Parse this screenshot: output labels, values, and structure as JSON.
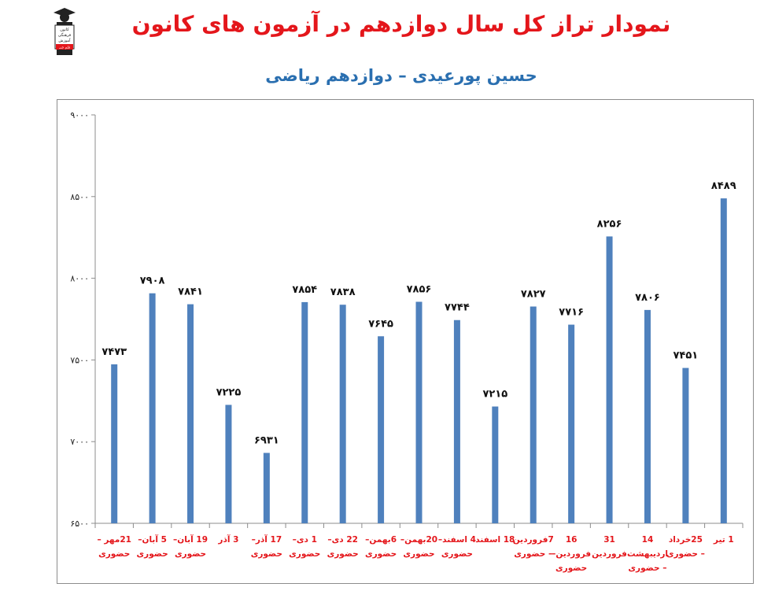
{
  "header": {
    "title": "نمودار تراز کل سال دوازدهم در آزمون های کانون",
    "subtitle": "حسین پورعیدی – دوازدهم ریاضی",
    "logo_text": [
      "کانون",
      "فرهنگی",
      "آموزش",
      "قلم چی"
    ]
  },
  "colors": {
    "title": "#e4161b",
    "subtitle": "#2a6fb0",
    "bar": "#4f81bd",
    "category_label": "#e4161b"
  },
  "chart_data": {
    "type": "bar",
    "categories": [
      [
        "21مهر –",
        "حضوری"
      ],
      [
        "5 آبان–",
        "حضوری"
      ],
      [
        "19 آبان–",
        "حضوری"
      ],
      [
        "3 آذر"
      ],
      [
        "17 آذر–",
        "حضوری"
      ],
      [
        "1 دی–",
        "حضوری"
      ],
      [
        "22 دی–",
        "حضوری"
      ],
      [
        "6بهمن–",
        "حضوری"
      ],
      [
        "20بهمن–",
        "حضوری"
      ],
      [
        "4 اسفند–",
        "حضوری"
      ],
      [
        "18 اسفند"
      ],
      [
        "7فروردین",
        "– حضوری"
      ],
      [
        "16",
        "فروردین–",
        "حضوری"
      ],
      [
        "31",
        "فروردین"
      ],
      [
        "14",
        "اردیبهشت",
        "– حضوری"
      ],
      [
        "25خرداد",
        "– حضوری"
      ],
      [
        "1 تیر"
      ]
    ],
    "values": [
      7473,
      7908,
      7841,
      7225,
      6931,
      7854,
      7838,
      7645,
      7856,
      7744,
      7215,
      7827,
      7716,
      8256,
      7806,
      7451,
      8489
    ],
    "data_labels": [
      "۷۴۷۳",
      "۷۹۰۸",
      "۷۸۴۱",
      "۷۲۲۵",
      "۶۹۳۱",
      "۷۸۵۴",
      "۷۸۳۸",
      "۷۶۴۵",
      "۷۸۵۶",
      "۷۷۴۴",
      "۷۲۱۵",
      "۷۸۲۷",
      "۷۷۱۶",
      "۸۲۵۶",
      "۷۸۰۶",
      "۷۴۵۱",
      "۸۴۸۹"
    ],
    "ylim": [
      6500,
      9000
    ],
    "yticks": [
      6500,
      7000,
      7500,
      8000,
      8500,
      9000
    ],
    "ytick_labels": [
      "۶۵۰۰",
      "۷۰۰۰",
      "۷۵۰۰",
      "۸۰۰۰",
      "۸۵۰۰",
      "۹۰۰۰"
    ],
    "grid": false,
    "legend": "none"
  }
}
